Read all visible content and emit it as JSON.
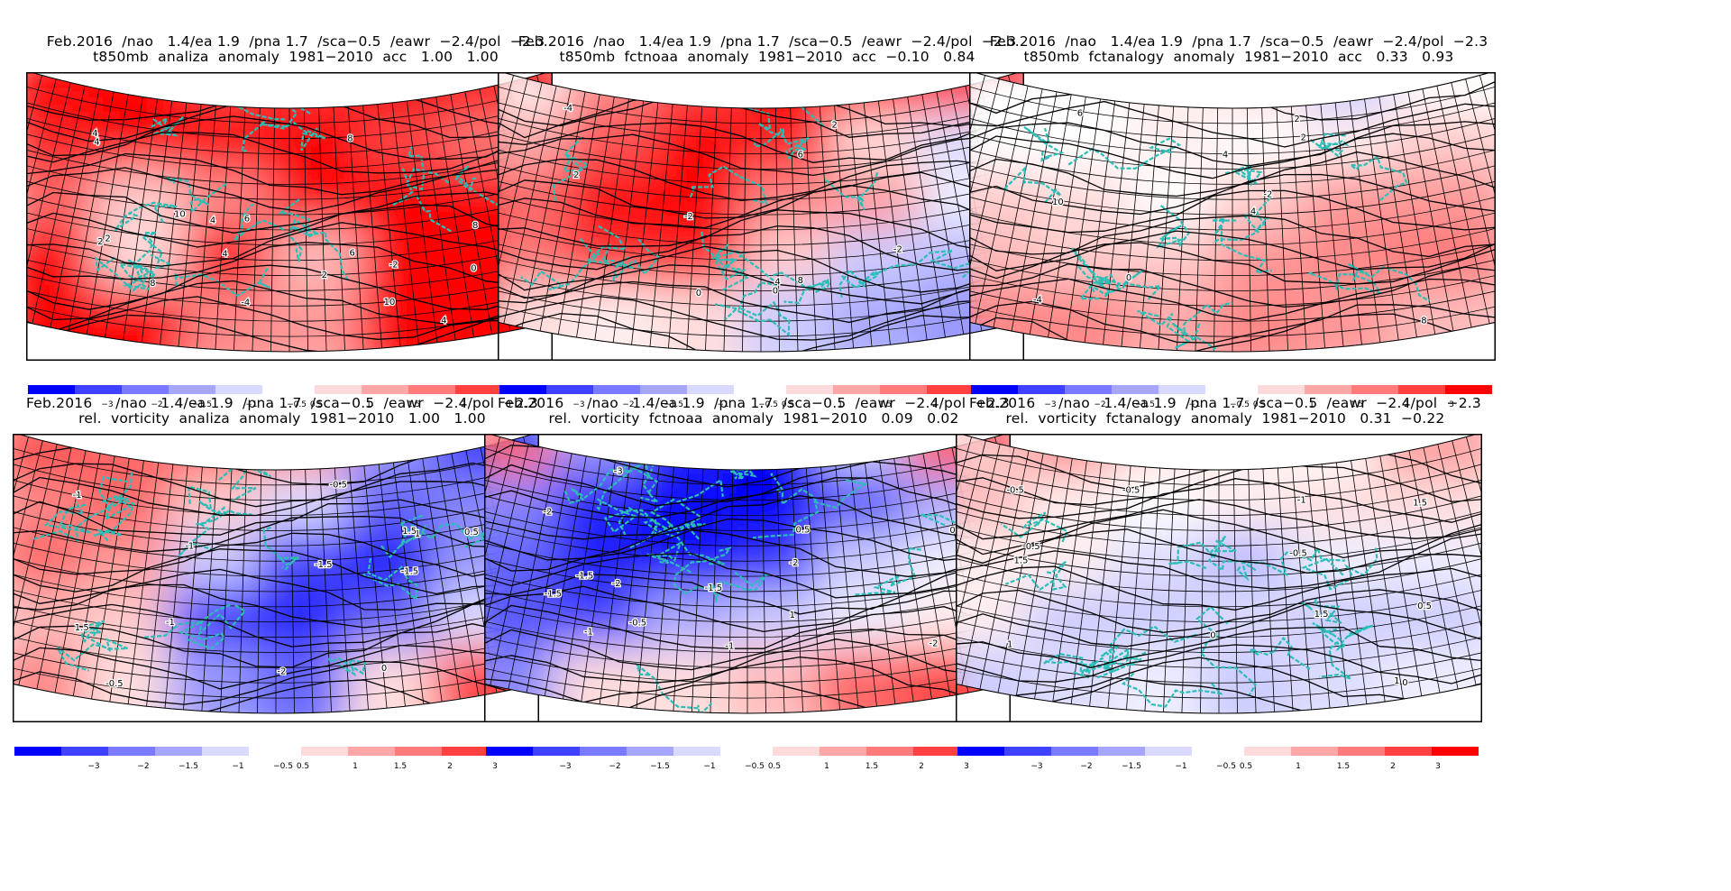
{
  "figure": {
    "panels": [
      {
        "id": "t850-analiza",
        "title_line1": "Feb.2016  /nao   1.4/ea 1.9  /pna 1.7  /sca−0.5  /eawr  −2.4/pol  −2.3",
        "title_line2": "t850mb  analiza  anomaly  1981−2010  acc   1.00   1.00",
        "palette": [
          "#f00",
          "#f00",
          "#f44",
          "#f33",
          "#e00",
          "#f00",
          "#f22",
          "#f00",
          "#f00",
          "#f00",
          "#f44",
          "#f77",
          "#f66",
          "#fcc",
          "#f88",
          "#f00",
          "#f00",
          "#f00",
          "#f00",
          "#fdd",
          "#f11",
          "#fbb",
          "#f00",
          "#f00",
          "#f00",
          "#f00",
          "#f88",
          "#f99",
          "#f00",
          "#f00"
        ],
        "contour_labels": [
          "4",
          "2",
          "4",
          "2",
          "4",
          "6",
          "8",
          "8",
          "10",
          "4",
          "6",
          "8",
          "10",
          "4",
          "2",
          "0",
          "-4",
          "-2"
        ]
      },
      {
        "id": "t850-fctnoaa",
        "title_line1": "Feb.2016  /nao   1.4/ea 1.9  /pna 1.7  /sca−0.5  /eawr  −2.4/pol  −2.3",
        "title_line2": "t850mb  fctnoaa  anomaly  1981−2010  acc  −0.10   0.84",
        "palette": [
          "#fee",
          "#f88",
          "#f44",
          "#f00",
          "#f00",
          "#f11",
          "#faa",
          "#f55",
          "#f00",
          "#f22",
          "#fdd",
          "#ddf",
          "#f66",
          "#f00",
          "#f00",
          "#f88",
          "#f99",
          "#eef",
          "#f77",
          "#f33",
          "#f22",
          "#fcc",
          "#ccf",
          "#bbf",
          "#fdd",
          "#fee",
          "#fdd",
          "#ccf",
          "#aaf",
          "#99f"
        ],
        "contour_labels": [
          "-4",
          "-2",
          "-2",
          "0",
          "2",
          "0",
          "2",
          "4",
          "6",
          "8"
        ]
      },
      {
        "id": "t850-fctanalogy",
        "title_line1": "Feb.2016  /nao   1.4/ea 1.9  /pna 1.7  /sca−0.5  /eawr  −2.4/pol  −2.3",
        "title_line2": "t850mb  fctanalogy  anomaly  1981−2010  acc   0.33   0.93",
        "palette": [
          "#fff",
          "#fff",
          "#fee",
          "#fdd",
          "#ccf",
          "#fff",
          "#fff",
          "#fff",
          "#fee",
          "#fff",
          "#fee",
          "#fcc",
          "#fcc",
          "#fdd",
          "#fff",
          "#fcc",
          "#f99",
          "#f99",
          "#fbb",
          "#fcc",
          "#fcc",
          "#f99",
          "#f88",
          "#f77",
          "#f88",
          "#f88",
          "#faa",
          "#f88",
          "#f99",
          "#fbb"
        ],
        "contour_labels": [
          "-4",
          "-2",
          "0",
          "2",
          "4",
          "2",
          "4",
          "6",
          "8",
          "10"
        ]
      },
      {
        "id": "vort-analiza",
        "title_line1": "Feb.2016     /nao   1.4/ea 1.9  /pna 1.7  /sca−0.5  /eawr  −2.4/pol  −2.3",
        "title_line2": "rel.  vorticity  analiza  anomaly  1981−2010   1.00   1.00",
        "palette": [
          "#f44",
          "#f66",
          "#f55",
          "#f88",
          "#99f",
          "#33f",
          "#f88",
          "#f66",
          "#fcc",
          "#ddf",
          "#66f",
          "#88f",
          "#f66",
          "#f99",
          "#ccf",
          "#44f",
          "#11f",
          "#99f",
          "#fbb",
          "#fcc",
          "#33f",
          "#22f",
          "#66f",
          "#ddf",
          "#f88",
          "#fdd",
          "#99f",
          "#66f",
          "#fdd",
          "#f44"
        ],
        "contour_labels": [
          "1.5",
          "1",
          "0",
          "0.5",
          "-1",
          "-1.5",
          "-2",
          "1.5",
          "-1",
          "-0.5",
          "-1.5",
          "-2",
          "-0.5",
          "-1"
        ]
      },
      {
        "id": "vort-fctnoaa",
        "title_line1": "Feb.2016     /nao   1.4/ea 1.9  /pna 1.7  /sca−0.5  /eawr  −2.4/pol  −2.3",
        "title_line2": "rel.  vorticity  fctnoaa  anomaly  1981−2010   0.09   0.02",
        "palette": [
          "#f66",
          "#99f",
          "#22f",
          "#00f",
          "#ccf",
          "#f55",
          "#88f",
          "#22f",
          "#11f",
          "#00f",
          "#55f",
          "#aaf",
          "#66f",
          "#22f",
          "#11f",
          "#33f",
          "#ccf",
          "#eef",
          "#55f",
          "#44f",
          "#aaf",
          "#ccf",
          "#eef",
          "#fee",
          "#88f",
          "#fdd",
          "#fdd",
          "#fbb",
          "#f66",
          "#f44"
        ],
        "contour_labels": [
          "-1.5",
          "-2",
          "-3",
          "-2",
          "-1.5",
          "-2",
          "-1",
          "-1.5",
          "-2",
          "-1",
          "-0.5",
          "0.5",
          "1",
          "0"
        ]
      },
      {
        "id": "vort-fctanalogy",
        "title_line1": "Feb.2016     /nao   1.4/ea 1.9  /pna 1.7  /sca−0.5  /eawr  −2.4/pol  −2.3",
        "title_line2": "rel.  vorticity  fctanalogy  anomaly  1981−2010   0.31  −0.22",
        "palette": [
          "#fcc",
          "#f88",
          "#fdd",
          "#fee",
          "#fff",
          "#f99",
          "#fbb",
          "#fee",
          "#fff",
          "#fee",
          "#fdd",
          "#fdd",
          "#fee",
          "#fee",
          "#ddf",
          "#bbf",
          "#eef",
          "#eef",
          "#fee",
          "#ccf",
          "#ccf",
          "#ddf",
          "#ccf",
          "#ccf",
          "#ccf",
          "#ddf",
          "#eef",
          "#ccf",
          "#ddf",
          "#eef"
        ],
        "contour_labels": [
          "1.5",
          "-0.5",
          "-1",
          "0",
          "0.5",
          "-0.5",
          "0",
          "1",
          "1.5",
          "-0.5",
          "1",
          "1.5",
          "-0.5"
        ]
      }
    ],
    "colorbar": {
      "negative_colors": [
        "#0000ff",
        "#4040ff",
        "#7a7aff",
        "#a6a6ff",
        "#dadaff"
      ],
      "positive_colors": [
        "#ffdada",
        "#ffa6a6",
        "#ff7a7a",
        "#ff4040",
        "#ff0000"
      ],
      "negative_labels": [
        "−3",
        "−2",
        "−1.5",
        "−1",
        "−0.5"
      ],
      "positive_labels": [
        "0.5",
        "1",
        "1.5",
        "2",
        "3"
      ]
    },
    "colors": {
      "coastline": "#2bbdb6",
      "contour": "#000000",
      "grid": "#000000"
    }
  }
}
